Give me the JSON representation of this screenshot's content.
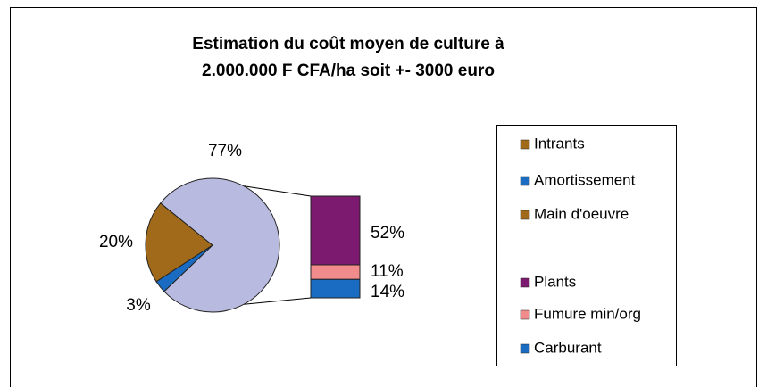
{
  "chart_data": {
    "type": "bar-of-pie",
    "title": [
      "Estimation du coût moyen de culture à",
      "2.000.000 F CFA/ha soit +- 3000 euro"
    ],
    "pie": {
      "categories": [
        "Intrants",
        "Amortissement",
        "Main d'oeuvre"
      ],
      "values": [
        77,
        3,
        20
      ],
      "value_labels": [
        "77%",
        "3%",
        "20%"
      ],
      "colors": [
        "#a06a1a",
        "#1a6cc2",
        "#a06a1a"
      ],
      "split_color": "#b8badf"
    },
    "bar": {
      "categories": [
        "Plants",
        "Fumure min/org",
        "Carburant"
      ],
      "values": [
        52,
        11,
        14
      ],
      "value_labels": [
        "52%",
        "11%",
        "14%"
      ],
      "colors": [
        "#7b1a6e",
        "#f28c8c",
        "#1a6cc2"
      ]
    }
  }
}
